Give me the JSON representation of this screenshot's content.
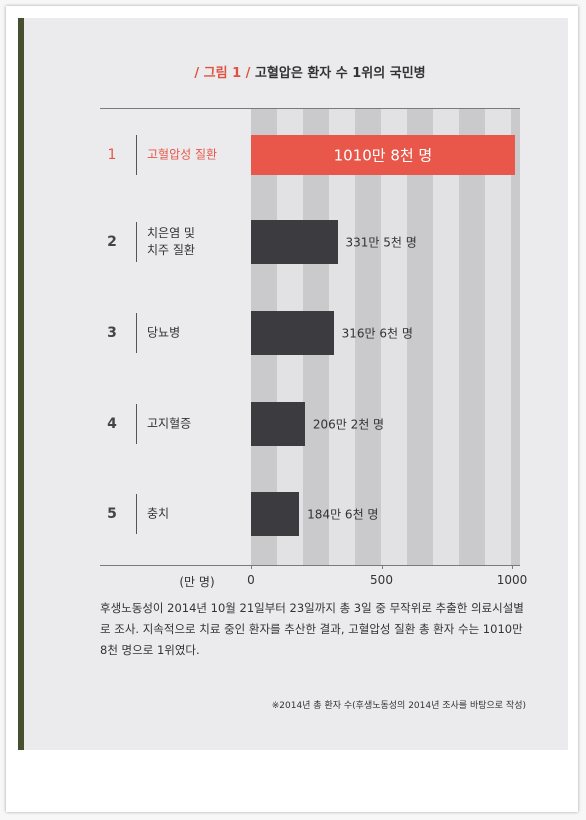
{
  "chart_data": {
    "type": "bar",
    "orientation": "horizontal",
    "figure_label": "/ 그림 1 /",
    "title": "고혈압은 환자 수 1위의 국민병",
    "ranks": [
      "1",
      "2",
      "3",
      "4",
      "5"
    ],
    "categories": [
      "고혈압성 질환",
      "치은염 및\n치주 질환",
      "당뇨병",
      "고지혈증",
      "충치"
    ],
    "values": [
      1010.8,
      331.5,
      316.6,
      206.2,
      184.6
    ],
    "value_labels": [
      "1010만 8천 명",
      "331만 5천 명",
      "316만 6천 명",
      "206만 2천 명",
      "184만 6천 명"
    ],
    "colors": [
      "#e8574a",
      "#3c3b3f",
      "#3c3b3f",
      "#3c3b3f",
      "#3c3b3f"
    ],
    "x_axis_label": "(만 명)",
    "xlim": [
      0,
      1000
    ],
    "xticks": [
      0,
      500,
      1000
    ],
    "caption": "후생노동성이 2014년 10월 21일부터 23일까지 총 3일 중 무작위로 추출한 의료시설별로 조사. 지속적으로 치료 중인 환자를 추산한 결과, 고혈압성 질환 총 환자 수는 1010만 8천 명으로 1위였다.",
    "note": "※2014년 총 환자 수(후생노동성의 2014년 조사를 바탕으로 작성)"
  }
}
